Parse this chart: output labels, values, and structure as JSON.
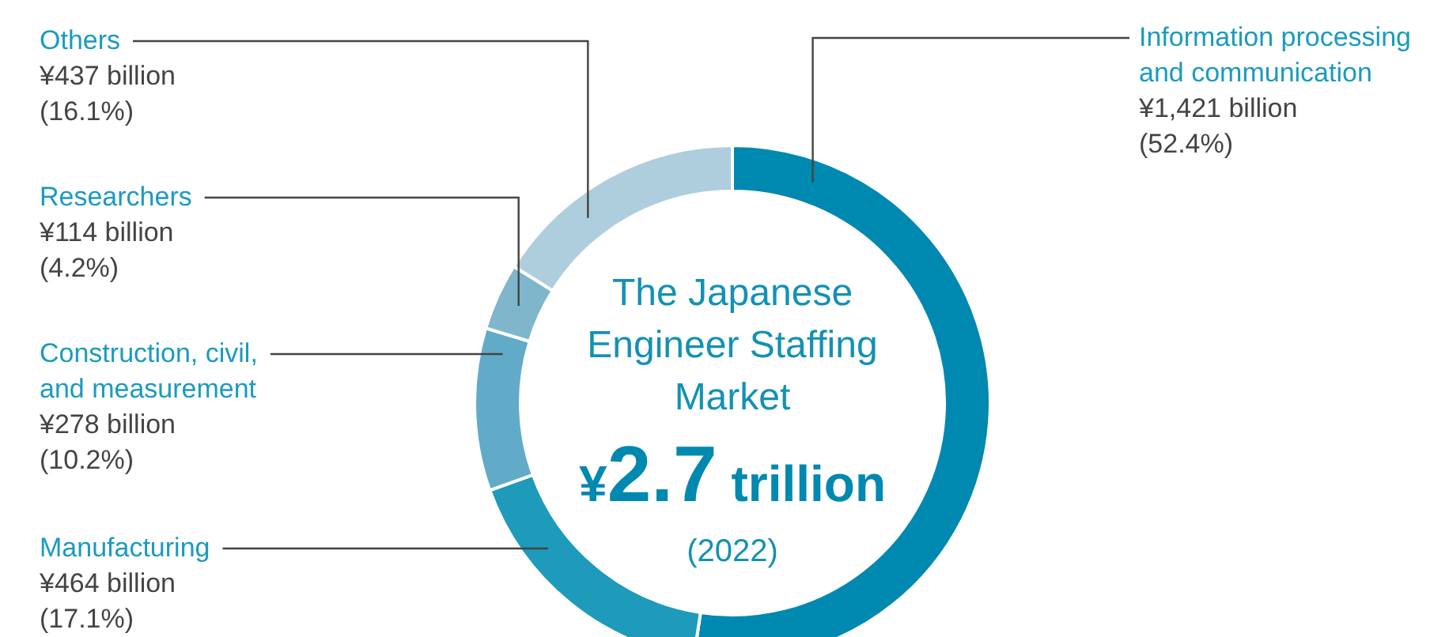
{
  "chart_data": {
    "type": "donut",
    "title": "The Japanese Engineer Staffing Market",
    "subtitle": "¥2.7 trillion",
    "annotations": [
      "(2022)"
    ],
    "categories": [
      "Information processing and communication",
      "Manufacturing",
      "Construction, civil, and measurement",
      "Researchers",
      "Others"
    ],
    "values": [
      52.4,
      17.1,
      10.2,
      4.2,
      16.1
    ],
    "colors": [
      "#0089b0",
      "#1e9aba",
      "#62abc8",
      "#80b6cc",
      "#afcedd"
    ],
    "value_labels": [
      "¥1,421 billion\n(52.4%)",
      "¥464 billion\n(17.1%)",
      "¥278 billion\n(10.2%)",
      "¥114 billion\n(4.2%)",
      "¥437 billion\n(16.1%)"
    ]
  }
}
